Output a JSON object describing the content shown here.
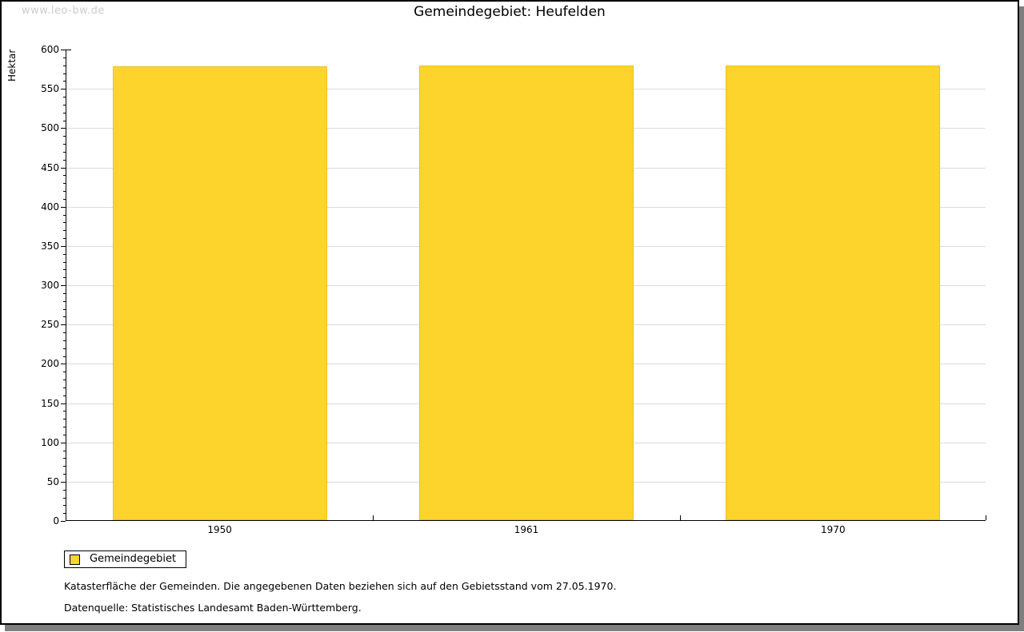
{
  "watermark": "www.leo-bw.de",
  "header": {
    "title": "Gemeindegebiet: Heufelden"
  },
  "chart_data": {
    "type": "bar",
    "title": "Gemeindegebiet: Heufelden",
    "categories": [
      "1950",
      "1961",
      "1970"
    ],
    "series": [
      {
        "name": "Gemeindegebiet",
        "values": [
          578,
          579,
          579
        ]
      }
    ],
    "xlabel": "",
    "ylabel": "Hektar",
    "ylim": [
      0,
      600
    ],
    "ytick_step": 50,
    "yminor_step": 10,
    "grid": true,
    "legend_position": "bottom-left",
    "bar_color": "#fcd42c"
  },
  "legend": {
    "label": "Gemeindegebiet",
    "swatch_color": "#fcd42c"
  },
  "footnotes": [
    "Katasterfläche der Gemeinden. Die angegebenen Daten beziehen sich auf den Gebietsstand vom 27.05.1970.",
    "Datenquelle: Statistisches Landesamt Baden-Württemberg."
  ],
  "colors": {
    "bar": "#fcd42c",
    "grid": "#dcdcdc",
    "axis": "#000000",
    "watermark": "#cccccc",
    "frame_shadow": "#7f7f7f"
  }
}
